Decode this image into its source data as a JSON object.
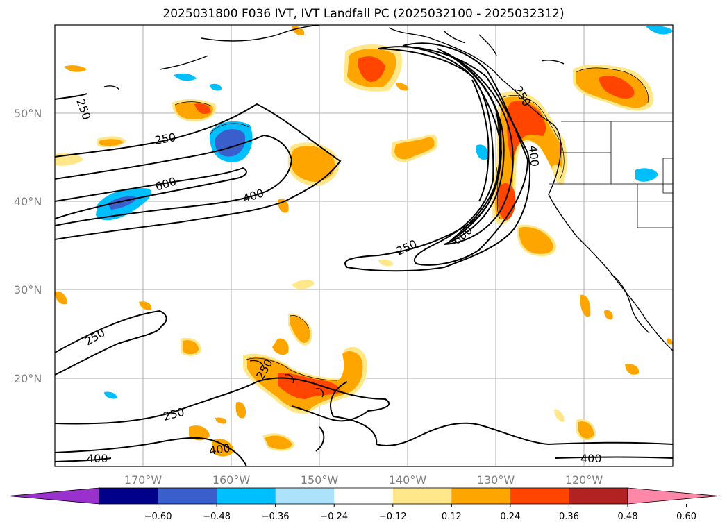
{
  "title": "2025031800 F036 IVT, IVT Landfall PC (2025032100 - 2025032312)",
  "lat_labels": [
    "50°N",
    "40°N",
    "30°N",
    "20°N"
  ],
  "lon_labels": [
    "170°W",
    "160°W",
    "150°W",
    "140°W",
    "130°W",
    "120°W"
  ],
  "contour_labels": [
    "250",
    "250",
    "600",
    "400",
    "250",
    "600",
    "400",
    "250",
    "250",
    "250",
    "400",
    "400",
    "400",
    "250"
  ],
  "colorbar": {
    "ticks": [
      "−0.60",
      "−0.48",
      "−0.36",
      "−0.24",
      "−0.12",
      "0.12",
      "0.24",
      "0.36",
      "0.48",
      "0.60"
    ],
    "colors": [
      "#9932CC",
      "#00008B",
      "#3A5FCD",
      "#00BFFF",
      "#ADE3FA",
      "#FFFFFF",
      "#FFE78A",
      "#FFA500",
      "#FF4500",
      "#B22222",
      "#FF87A8"
    ]
  }
}
